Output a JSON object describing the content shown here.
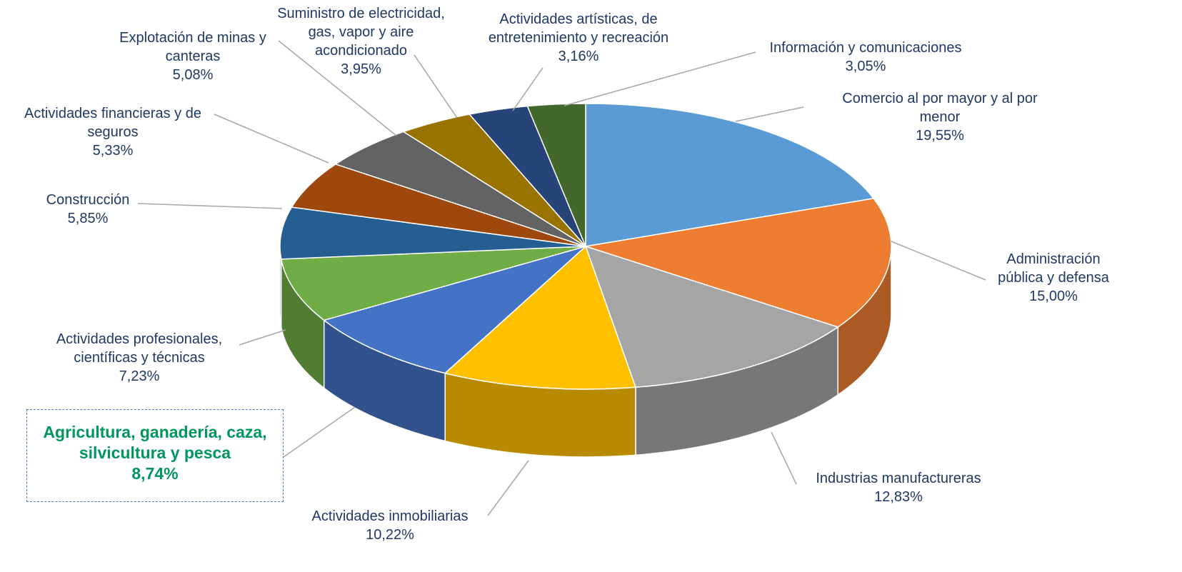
{
  "chart_data": {
    "type": "pie",
    "categories": [
      "Comercio al por mayor y al por menor",
      "Administración pública y defensa",
      "Industrias manufactureras",
      "Actividades inmobiliarias",
      "Agricultura, ganadería, caza, silvicultura y pesca",
      "Actividades profesionales, científicas y técnicas",
      "Construcción",
      "Actividades financieras y de seguros",
      "Explotación de minas y canteras",
      "Suministro de electricidad, gas, vapor y aire acondicionado",
      "Actividades artísticas, de entretenimiento y recreación",
      "Información y comunicaciones"
    ],
    "values": [
      19.55,
      15.0,
      12.83,
      10.22,
      8.74,
      7.23,
      5.85,
      5.33,
      5.08,
      3.95,
      3.16,
      3.05
    ],
    "value_labels": [
      "19,55%",
      "15,00%",
      "12,83%",
      "10,22%",
      "8,74%",
      "7,23%",
      "5,85%",
      "5,33%",
      "5,08%",
      "3,95%",
      "3,16%",
      "3,05%"
    ],
    "colors": [
      "#5b9bd5",
      "#ed7d31",
      "#a5a5a5",
      "#ffc000",
      "#4472c4",
      "#70ad47",
      "#255e91",
      "#9e480e",
      "#636363",
      "#997300",
      "#264478",
      "#43682b"
    ]
  }
}
